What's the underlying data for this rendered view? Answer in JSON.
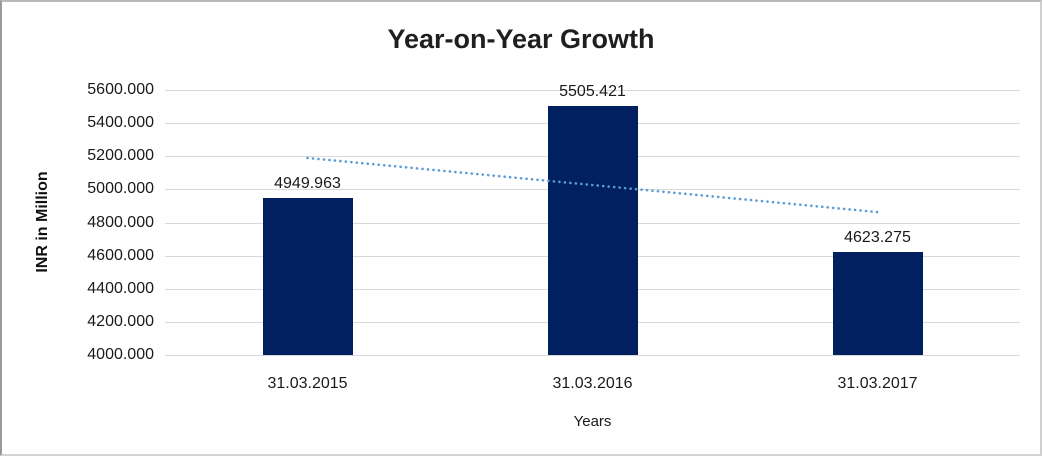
{
  "chart_data": {
    "type": "bar",
    "title": "Year-on-Year Growth",
    "categories": [
      "31.03.2015",
      "31.03.2016",
      "31.03.2017"
    ],
    "values": [
      4949.963,
      5505.421,
      4623.275
    ],
    "data_labels": [
      "4949.963",
      "5505.421",
      "4623.275"
    ],
    "xlabel": "Years",
    "ylabel": "INR in Million",
    "ylim": [
      4000,
      5600
    ],
    "ytick_step": 200,
    "ytick_labels": [
      "4000.000",
      "4200.000",
      "4400.000",
      "4600.000",
      "4800.000",
      "5000.000",
      "5200.000",
      "5400.000",
      "5600.000"
    ],
    "grid": true,
    "legend": "none",
    "colors": {
      "bar": "#002060",
      "trendline": "#5B9BD5",
      "gridline": "#d9d9d9",
      "text": "#1a1a1a",
      "title": "#1f1f1f"
    },
    "trendline": {
      "kind": "linear",
      "style": "dotted"
    }
  }
}
